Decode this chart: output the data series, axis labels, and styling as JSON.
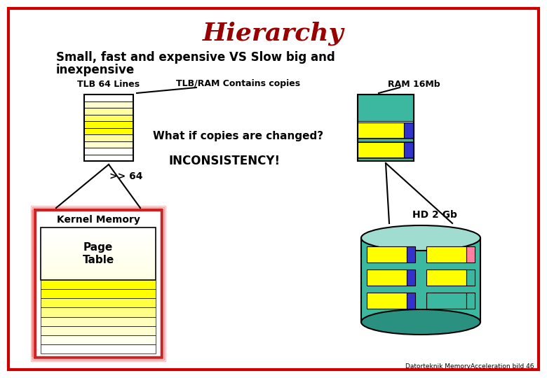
{
  "title": "Hierarchy",
  "title_color": "#990000",
  "subtitle_line1": "Small, fast and expensive VS Slow big and",
  "subtitle_line2": "inexpensive",
  "border_color": "#cc0000",
  "background_color": "#ffffff",
  "tlb_label": "TLB 64 Lines",
  "tlbram_label": "TLB/RAM Contains copies",
  "ram_label": "RAM 16Mb",
  "what_if_text": "What if copies are changed?",
  "inconsistency_text": "INCONSISTENCY!",
  "gt64_text": ">> 64",
  "kernel_label": "Kernel Memory",
  "page_table_label": "Page\nTable",
  "hd_label": "HD 2 Gb",
  "footer_text": "Datorteknik MemoryAcceleration bild 46",
  "teal_color": "#3db8a0",
  "teal_light": "#a0ddd0",
  "teal_dark": "#2a9080",
  "yellow_bright": "#ffff00",
  "yellow_light": "#ffffaa",
  "yellow_pale": "#ffffdd",
  "blue_small": "#3333cc",
  "pink_small": "#ff80a0",
  "red_border": "#cc2222"
}
